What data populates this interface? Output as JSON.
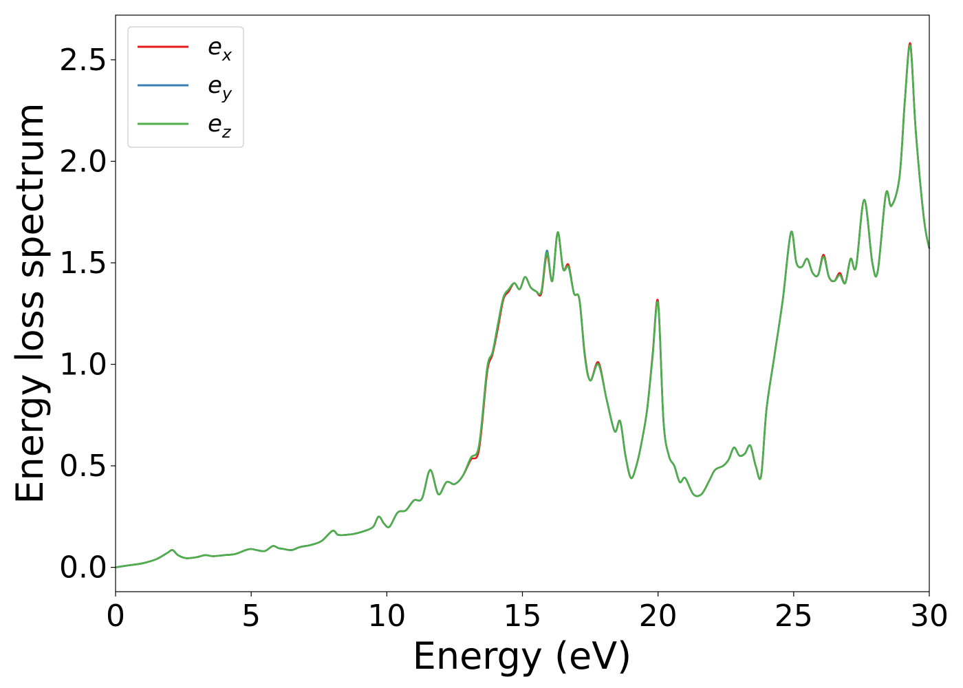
{
  "chart_data": {
    "type": "line",
    "title": "",
    "xlabel": "Energy (eV)",
    "ylabel": "Energy loss spectrum",
    "xlim": [
      0,
      30
    ],
    "ylim": [
      -0.12,
      2.72
    ],
    "xticks": [
      0,
      5,
      10,
      15,
      20,
      25,
      30
    ],
    "xtick_labels": [
      "0",
      "5",
      "10",
      "15",
      "20",
      "25",
      "30"
    ],
    "yticks": [
      0.0,
      0.5,
      1.0,
      1.5,
      2.0,
      2.5
    ],
    "ytick_labels": [
      "0.0",
      "0.5",
      "1.0",
      "1.5",
      "2.0",
      "2.5"
    ],
    "grid": false,
    "legend_position": "top-left",
    "x": [
      0,
      0.5,
      1.0,
      1.5,
      1.9,
      2.1,
      2.3,
      2.6,
      3.0,
      3.3,
      3.6,
      4.0,
      4.4,
      4.8,
      5.0,
      5.2,
      5.5,
      5.8,
      6.0,
      6.2,
      6.5,
      6.8,
      7.2,
      7.6,
      8.0,
      8.2,
      8.5,
      8.8,
      9.2,
      9.5,
      9.7,
      9.9,
      10.1,
      10.4,
      10.7,
      11.0,
      11.3,
      11.6,
      11.9,
      12.2,
      12.5,
      12.8,
      13.1,
      13.4,
      13.7,
      13.9,
      14.1,
      14.3,
      14.5,
      14.7,
      14.9,
      15.1,
      15.3,
      15.5,
      15.7,
      15.9,
      16.1,
      16.3,
      16.5,
      16.7,
      16.9,
      17.1,
      17.3,
      17.5,
      17.8,
      18.1,
      18.4,
      18.6,
      18.8,
      19.0,
      19.2,
      19.4,
      19.6,
      19.8,
      20.0,
      20.2,
      20.4,
      20.6,
      20.8,
      21.0,
      21.3,
      21.6,
      21.9,
      22.1,
      22.4,
      22.6,
      22.8,
      23.0,
      23.2,
      23.4,
      23.6,
      23.8,
      24.0,
      24.3,
      24.6,
      24.9,
      25.1,
      25.3,
      25.5,
      25.7,
      25.9,
      26.1,
      26.3,
      26.5,
      26.7,
      26.9,
      27.1,
      27.3,
      27.6,
      27.9,
      28.1,
      28.4,
      28.6,
      28.9,
      29.1,
      29.3,
      29.5,
      29.8,
      30.0
    ],
    "series": [
      {
        "name": "e_x",
        "sub": "x",
        "color": "#e41a1c",
        "values": [
          0.0,
          0.01,
          0.02,
          0.04,
          0.07,
          0.085,
          0.06,
          0.045,
          0.05,
          0.06,
          0.055,
          0.06,
          0.065,
          0.085,
          0.09,
          0.085,
          0.08,
          0.105,
          0.095,
          0.09,
          0.085,
          0.1,
          0.11,
          0.13,
          0.18,
          0.16,
          0.16,
          0.165,
          0.18,
          0.2,
          0.25,
          0.215,
          0.2,
          0.27,
          0.28,
          0.33,
          0.34,
          0.48,
          0.36,
          0.42,
          0.41,
          0.45,
          0.53,
          0.58,
          0.96,
          1.05,
          1.18,
          1.32,
          1.36,
          1.4,
          1.37,
          1.43,
          1.38,
          1.36,
          1.35,
          1.54,
          1.41,
          1.65,
          1.47,
          1.49,
          1.35,
          1.32,
          1.05,
          0.92,
          1.01,
          0.83,
          0.67,
          0.72,
          0.55,
          0.44,
          0.5,
          0.62,
          0.78,
          1.05,
          1.31,
          0.72,
          0.55,
          0.5,
          0.42,
          0.44,
          0.36,
          0.36,
          0.43,
          0.48,
          0.5,
          0.53,
          0.59,
          0.55,
          0.56,
          0.6,
          0.5,
          0.45,
          0.78,
          1.05,
          1.32,
          1.65,
          1.5,
          1.48,
          1.52,
          1.45,
          1.44,
          1.54,
          1.43,
          1.41,
          1.45,
          1.4,
          1.52,
          1.48,
          1.81,
          1.5,
          1.46,
          1.84,
          1.78,
          1.92,
          2.3,
          2.58,
          2.15,
          1.72,
          1.57
        ]
      },
      {
        "name": "e_y",
        "sub": "y",
        "color": "#377eb8",
        "values": [
          0.0,
          0.01,
          0.02,
          0.04,
          0.07,
          0.085,
          0.06,
          0.045,
          0.05,
          0.06,
          0.055,
          0.06,
          0.065,
          0.085,
          0.09,
          0.085,
          0.08,
          0.105,
          0.095,
          0.09,
          0.085,
          0.1,
          0.11,
          0.13,
          0.18,
          0.16,
          0.16,
          0.165,
          0.18,
          0.2,
          0.25,
          0.215,
          0.2,
          0.27,
          0.28,
          0.33,
          0.34,
          0.48,
          0.36,
          0.42,
          0.41,
          0.45,
          0.54,
          0.6,
          0.98,
          1.06,
          1.2,
          1.33,
          1.37,
          1.4,
          1.37,
          1.43,
          1.38,
          1.36,
          1.36,
          1.56,
          1.41,
          1.65,
          1.47,
          1.48,
          1.35,
          1.32,
          1.04,
          0.92,
          1.0,
          0.83,
          0.67,
          0.72,
          0.55,
          0.44,
          0.5,
          0.62,
          0.78,
          1.04,
          1.3,
          0.72,
          0.55,
          0.5,
          0.42,
          0.44,
          0.36,
          0.36,
          0.43,
          0.48,
          0.5,
          0.53,
          0.59,
          0.55,
          0.56,
          0.6,
          0.5,
          0.45,
          0.78,
          1.05,
          1.32,
          1.65,
          1.5,
          1.48,
          1.52,
          1.45,
          1.44,
          1.53,
          1.43,
          1.41,
          1.44,
          1.4,
          1.52,
          1.48,
          1.81,
          1.5,
          1.46,
          1.84,
          1.78,
          1.92,
          2.3,
          2.57,
          2.15,
          1.72,
          1.57
        ]
      },
      {
        "name": "e_z",
        "sub": "z",
        "color": "#4daf4a",
        "values": [
          0.0,
          0.01,
          0.02,
          0.04,
          0.07,
          0.085,
          0.06,
          0.045,
          0.05,
          0.06,
          0.055,
          0.06,
          0.065,
          0.085,
          0.09,
          0.085,
          0.08,
          0.105,
          0.095,
          0.09,
          0.085,
          0.1,
          0.11,
          0.13,
          0.18,
          0.16,
          0.16,
          0.165,
          0.18,
          0.2,
          0.25,
          0.215,
          0.2,
          0.27,
          0.28,
          0.33,
          0.34,
          0.48,
          0.36,
          0.42,
          0.41,
          0.45,
          0.54,
          0.6,
          0.98,
          1.06,
          1.2,
          1.33,
          1.37,
          1.4,
          1.37,
          1.43,
          1.38,
          1.36,
          1.36,
          1.55,
          1.41,
          1.65,
          1.47,
          1.48,
          1.35,
          1.32,
          1.04,
          0.92,
          1.0,
          0.83,
          0.67,
          0.72,
          0.55,
          0.44,
          0.5,
          0.62,
          0.78,
          1.04,
          1.3,
          0.72,
          0.55,
          0.5,
          0.42,
          0.44,
          0.36,
          0.36,
          0.43,
          0.48,
          0.5,
          0.53,
          0.59,
          0.55,
          0.56,
          0.6,
          0.5,
          0.45,
          0.78,
          1.05,
          1.32,
          1.65,
          1.5,
          1.48,
          1.52,
          1.45,
          1.44,
          1.53,
          1.43,
          1.41,
          1.44,
          1.4,
          1.52,
          1.48,
          1.81,
          1.5,
          1.46,
          1.84,
          1.78,
          1.92,
          2.3,
          2.57,
          2.15,
          1.72,
          1.57
        ]
      }
    ]
  }
}
